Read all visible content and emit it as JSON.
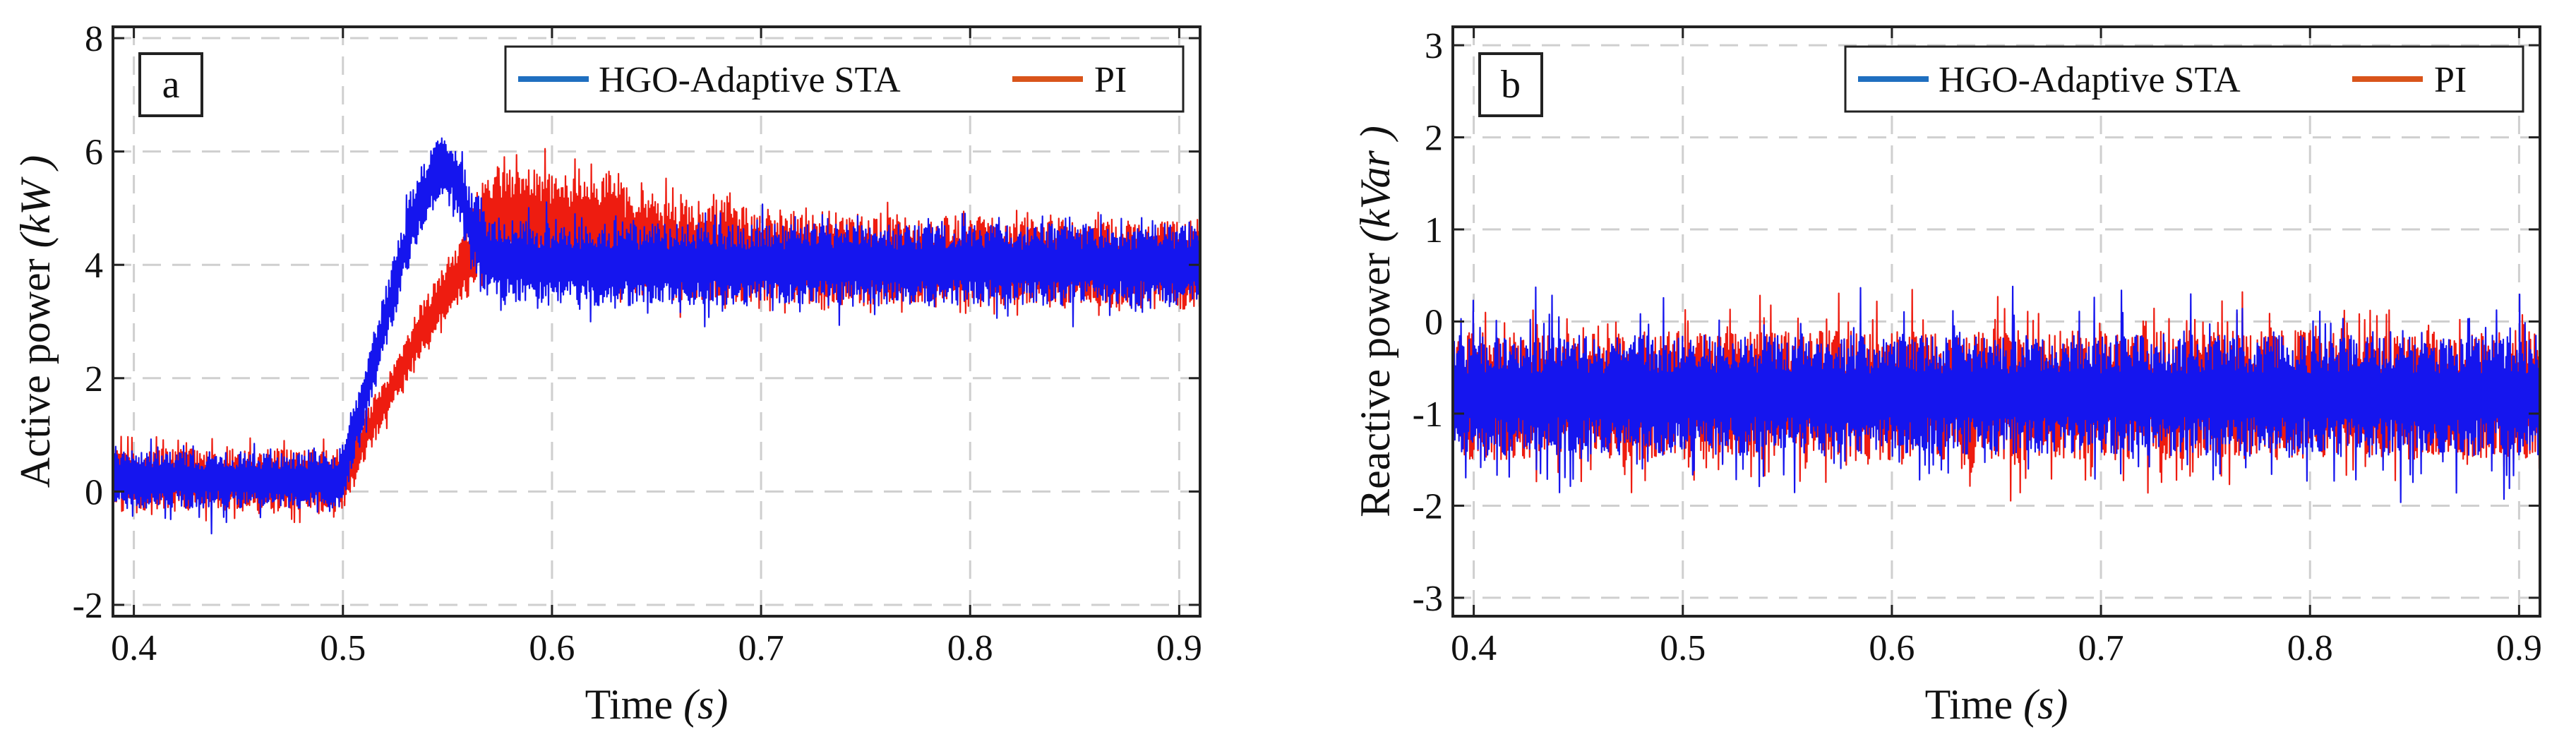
{
  "figure": {
    "colors": {
      "blue": "#1515ee",
      "red": "#ee1c10",
      "legend_blue": "#1f6fc0",
      "legend_red": "#d9541a",
      "grid": "#cfcfcf",
      "frame": "#222222"
    },
    "legend_icons": [
      "line-swatch-blue",
      "line-swatch-red"
    ]
  },
  "chart_data": [
    {
      "type": "line",
      "panel_tag": "a",
      "title": "",
      "xlabel_main": "Time ",
      "xlabel_unit": "(s)",
      "ylabel_main": "Active power ",
      "ylabel_unit": "(kW )",
      "xlim": [
        0.39,
        0.91
      ],
      "ylim": [
        -2.2,
        8.2
      ],
      "xticks": [
        0.4,
        0.5,
        0.6,
        0.7,
        0.8,
        0.9
      ],
      "xtick_labels": [
        "0.4",
        "0.5",
        "0.6",
        "0.7",
        "0.8",
        "0.9"
      ],
      "yticks": [
        -2,
        0,
        2,
        4,
        6,
        8
      ],
      "ytick_labels": [
        "-2",
        "0",
        "2",
        "4",
        "6",
        "8"
      ],
      "grid": true,
      "legend_position": "top-right",
      "legend": [
        "HGO-Adaptive STA",
        "PI"
      ],
      "series": [
        {
          "name": "PI",
          "color": "#ee1c10",
          "envelope": {
            "x": [
              0.39,
              0.5,
              0.505,
              0.52,
              0.54,
              0.55,
              0.56,
              0.565,
              0.57,
              0.6,
              0.63,
              0.65,
              0.7,
              0.8,
              0.91
            ],
            "mean": [
              0.2,
              0.2,
              0.6,
              1.6,
              3.0,
              3.6,
              4.1,
              4.6,
              4.85,
              4.7,
              4.55,
              4.3,
              4.15,
              4.05,
              4.0
            ],
            "band": [
              0.55,
              0.55,
              0.45,
              0.4,
              0.45,
              0.5,
              0.6,
              0.8,
              0.9,
              0.95,
              0.95,
              0.9,
              0.85,
              0.8,
              0.8
            ],
            "peak": [
              0.95,
              0.95,
              0.8,
              0.7,
              0.7,
              0.8,
              0.9,
              1.1,
              1.3,
              1.5,
              1.5,
              1.3,
              1.1,
              1.05,
              1.0
            ]
          }
        },
        {
          "name": "HGO-Adaptive STA",
          "color": "#1515ee",
          "envelope": {
            "x": [
              0.39,
              0.5,
              0.505,
              0.52,
              0.535,
              0.548,
              0.555,
              0.56,
              0.57,
              0.6,
              0.7,
              0.8,
              0.91
            ],
            "mean": [
              0.2,
              0.2,
              1.0,
              3.0,
              5.0,
              5.8,
              5.5,
              4.8,
              4.1,
              4.0,
              4.0,
              4.0,
              4.0
            ],
            "band": [
              0.5,
              0.5,
              0.45,
              0.55,
              0.6,
              0.55,
              0.6,
              0.7,
              0.72,
              0.72,
              0.72,
              0.72,
              0.72
            ],
            "peak": [
              0.95,
              0.95,
              0.8,
              0.85,
              0.85,
              0.85,
              0.9,
              1.0,
              1.1,
              1.1,
              1.1,
              1.1,
              1.1
            ]
          }
        }
      ]
    },
    {
      "type": "line",
      "panel_tag": "b",
      "title": "",
      "xlabel_main": "Time ",
      "xlabel_unit": "(s)",
      "ylabel_main": "Reactive power ",
      "ylabel_unit": "(kVar )",
      "xlim": [
        0.39,
        0.91
      ],
      "ylim": [
        -3.2,
        3.2
      ],
      "xticks": [
        0.4,
        0.5,
        0.6,
        0.7,
        0.8,
        0.9
      ],
      "xtick_labels": [
        "0.4",
        "0.5",
        "0.6",
        "0.7",
        "0.8",
        "0.9"
      ],
      "yticks": [
        -3,
        -2,
        -1,
        0,
        1,
        2,
        3
      ],
      "ytick_labels": [
        "-3",
        "-2",
        "-1",
        "0",
        "1",
        "2",
        "3"
      ],
      "grid": true,
      "legend_position": "top-right",
      "legend": [
        "HGO-Adaptive STA",
        "PI"
      ],
      "series": [
        {
          "name": "PI",
          "color": "#ee1c10",
          "envelope": {
            "x": [
              0.39,
              0.91
            ],
            "mean": [
              -0.8,
              -0.8
            ],
            "band": [
              0.7,
              0.7
            ],
            "peak": [
              1.15,
              1.15
            ]
          }
        },
        {
          "name": "HGO-Adaptive STA",
          "color": "#1515ee",
          "envelope": {
            "x": [
              0.39,
              0.91
            ],
            "mean": [
              -0.8,
              -0.8
            ],
            "band": [
              0.65,
              0.65
            ],
            "peak": [
              1.2,
              1.2
            ]
          }
        }
      ]
    }
  ]
}
